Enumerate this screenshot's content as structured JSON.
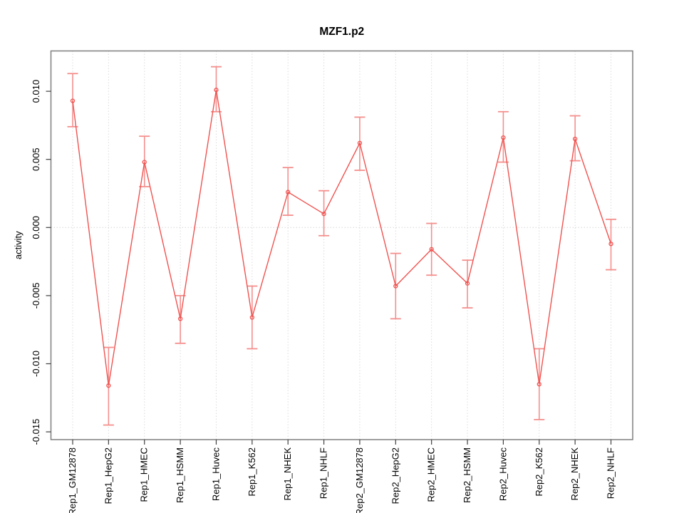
{
  "chart_data": {
    "type": "line",
    "title": "MZF1.p2",
    "xlabel": "",
    "ylabel": "activity",
    "legend": "none",
    "grid": {
      "vertical_dotted_per_category": true,
      "horizontal_zero_line_dotted": true
    },
    "categories": [
      "Rep1_GM12878",
      "Rep1_HepG2",
      "Rep1_HMEC",
      "Rep1_HSMM",
      "Rep1_Huvec",
      "Rep1_K562",
      "Rep1_NHEK",
      "Rep1_NHLF",
      "Rep2_GM12878",
      "Rep2_HepG2",
      "Rep2_HMEC",
      "Rep2_HSMM",
      "Rep2_Huvec",
      "Rep2_K562",
      "Rep2_NHEK",
      "Rep2_NHLF"
    ],
    "series": [
      {
        "name": "activity",
        "values": [
          0.0093,
          -0.0116,
          0.0048,
          -0.0067,
          0.0101,
          -0.0066,
          0.0026,
          0.001,
          0.0062,
          -0.0043,
          -0.0016,
          -0.0041,
          0.0066,
          -0.0115,
          0.0065,
          -0.0012
        ],
        "error_high": [
          0.0113,
          -0.0088,
          0.0067,
          -0.005,
          0.0118,
          -0.0043,
          0.0044,
          0.0027,
          0.0081,
          -0.0019,
          0.0003,
          -0.0024,
          0.0085,
          -0.0089,
          0.0082,
          0.0006
        ],
        "error_low": [
          0.0074,
          -0.0145,
          0.003,
          -0.0085,
          0.0085,
          -0.0089,
          0.0009,
          -0.0006,
          0.0042,
          -0.0067,
          -0.0035,
          -0.0059,
          0.0048,
          -0.0141,
          0.0049,
          -0.0031
        ]
      }
    ],
    "yticks": {
      "values": [
        0.01,
        0.005,
        0.0,
        -0.005,
        -0.01,
        -0.015
      ],
      "labels": [
        "0.010",
        "0.005",
        "0.000",
        "-0.005",
        "-0.010",
        "-0.015"
      ]
    },
    "ylim": [
      -0.01557,
      0.01296
    ],
    "marker": {
      "shape": "open-circle",
      "radius": 2.5
    },
    "colors": {
      "series": "#EF5350",
      "error_bar": "#F48F8D",
      "grid": "#DBDBDB",
      "zero_line": "#D6D6D6",
      "box": "#7F7F7F",
      "tick": "#404040",
      "text": "#000000",
      "background": "#FFFFFF"
    }
  }
}
